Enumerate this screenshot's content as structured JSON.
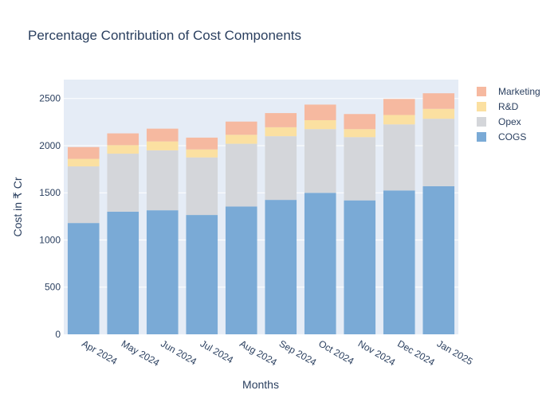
{
  "chart_data": {
    "type": "bar",
    "stacked": true,
    "title": "Percentage Contribution of Cost Components",
    "xlabel": "Months",
    "ylabel": "Cost in ₹ Cr",
    "ylim": [
      0,
      2700
    ],
    "yticks": [
      0,
      500,
      1000,
      1500,
      2000,
      2500
    ],
    "grid": true,
    "legend_position": "right",
    "categories": [
      "Apr 2024",
      "May 2024",
      "Jun 2024",
      "Jul 2024",
      "Aug 2024",
      "Sep 2024",
      "Oct 2024",
      "Nov 2024",
      "Dec 2024",
      "Jan 2025"
    ],
    "series": [
      {
        "name": "COGS",
        "color": "#7aaad6",
        "values": [
          1180,
          1300,
          1315,
          1265,
          1355,
          1425,
          1500,
          1420,
          1525,
          1570
        ]
      },
      {
        "name": "Opex",
        "color": "#d4d6da",
        "values": [
          600,
          615,
          635,
          610,
          665,
          675,
          675,
          670,
          700,
          715
        ]
      },
      {
        "name": "R&D",
        "color": "#fbe0a1",
        "values": [
          80,
          90,
          95,
          85,
          95,
          95,
          95,
          85,
          100,
          105
        ]
      },
      {
        "name": "Marketing",
        "color": "#f6b9a0",
        "values": [
          125,
          125,
          135,
          125,
          140,
          150,
          165,
          160,
          170,
          165
        ]
      }
    ]
  }
}
